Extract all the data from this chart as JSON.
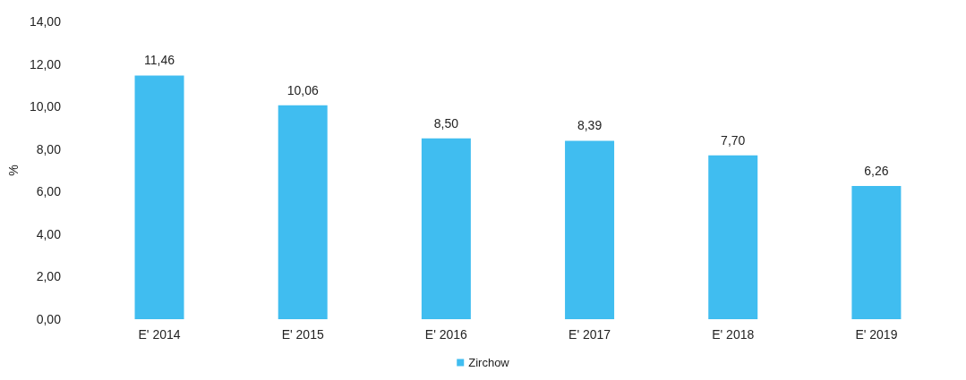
{
  "chart_data": {
    "type": "bar",
    "ylabel": "%",
    "categories": [
      "E' 2014",
      "E' 2015",
      "E' 2016",
      "E' 2017",
      "E' 2018",
      "E' 2019"
    ],
    "series": [
      {
        "name": "Zirchow",
        "color": "#40bdf0",
        "values": [
          11.46,
          10.06,
          8.5,
          8.39,
          7.7,
          6.26
        ],
        "value_labels": [
          "11,46",
          "10,06",
          "8,50",
          "8,39",
          "7,70",
          "6,26"
        ]
      }
    ],
    "ylim": [
      0,
      14
    ],
    "yticks": [
      {
        "value": 0,
        "label": "0,00"
      },
      {
        "value": 2,
        "label": "2,00"
      },
      {
        "value": 4,
        "label": "4,00"
      },
      {
        "value": 6,
        "label": "6,00"
      },
      {
        "value": 8,
        "label": "8,00"
      },
      {
        "value": 10,
        "label": "10,00"
      },
      {
        "value": 12,
        "label": "12,00"
      },
      {
        "value": 14,
        "label": "14,00"
      }
    ],
    "grid": false,
    "legend": "bottom"
  }
}
